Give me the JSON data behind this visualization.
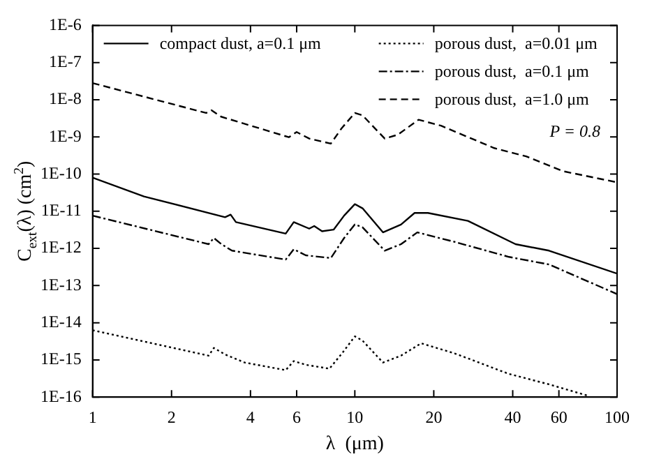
{
  "chart_data": {
    "type": "line",
    "xlabel": "λ  (μm)",
    "ylabel": "C$_{ext}$(λ) (cm$^{2}$)",
    "log": "xy",
    "grid": false,
    "legend": "top",
    "marker": "none",
    "xlim": [
      1,
      100
    ],
    "xticks": [
      1,
      2,
      4,
      6,
      10,
      20,
      40,
      60,
      100
    ],
    "ylim": [
      1e-16,
      1e-06
    ],
    "yticks": [
      {
        "value": 1e-16,
        "label": "1E-16"
      },
      {
        "value": 1e-15,
        "label": "1E-15"
      },
      {
        "value": 1e-14,
        "label": "1E-14"
      },
      {
        "value": 1e-13,
        "label": "1E-13"
      },
      {
        "value": 1e-12,
        "label": "1E-12"
      },
      {
        "value": 1e-11,
        "label": "1E-11"
      },
      {
        "value": 1e-10,
        "label": "1E-10"
      },
      {
        "value": 1e-09,
        "label": "1E-9"
      },
      {
        "value": 1e-08,
        "label": "1E-8"
      },
      {
        "value": 1e-07,
        "label": "1E-7"
      },
      {
        "value": 1e-06,
        "label": "1E-6"
      }
    ],
    "annotations": [
      "P = 0.8"
    ],
    "series": [
      {
        "name": "compact dust, a=0.1 μm",
        "color": "#000000",
        "line_style": "solid",
        "x": [
          1,
          1.57,
          3.2,
          3.36,
          3.52,
          5.45,
          5.85,
          6.7,
          7.0,
          7.5,
          8.3,
          9.1,
          10,
          10.7,
          12.8,
          15,
          16.9,
          19,
          27,
          41,
          55,
          100
        ],
        "values": [
          8e-11,
          2.5e-11,
          6.9e-12,
          8.1e-12,
          5.1e-12,
          2.5e-12,
          5.1e-12,
          3.4e-12,
          4e-12,
          2.9e-12,
          3.2e-12,
          7.6e-12,
          1.55e-11,
          1.2e-11,
          2.7e-12,
          4.4e-12,
          9e-12,
          9e-12,
          5.5e-12,
          1.3e-12,
          8.7e-13,
          2.1e-13
        ]
      },
      {
        "name": "porous dust,  a=0.01 μm",
        "color": "#000000",
        "line_style": "dotted",
        "x": [
          1,
          2.77,
          2.9,
          3.2,
          3.8,
          5.45,
          5.85,
          6.5,
          8,
          9,
          10,
          10.7,
          12.8,
          15,
          17.9,
          24,
          38.7,
          55,
          77
        ],
        "values": [
          6.3e-15,
          1.3e-15,
          2.1e-15,
          1.4e-15,
          8.5e-16,
          5.3e-16,
          9.3e-16,
          7.4e-16,
          5.8e-16,
          1.6e-15,
          4.3e-15,
          3.3e-15,
          8.5e-16,
          1.3e-15,
          2.8e-15,
          1.5e-15,
          4.2e-16,
          2.2e-16,
          1.1e-16
        ]
      },
      {
        "name": "porous dust,  a=0.1 μm",
        "color": "#000000",
        "line_style": "dashdot",
        "x": [
          1,
          2.77,
          2.9,
          3.1,
          3.4,
          5.45,
          5.85,
          6.5,
          8.1,
          9.1,
          10,
          10.7,
          13,
          15,
          17.3,
          24,
          38.7,
          55,
          100
        ],
        "values": [
          7.6e-12,
          1.3e-12,
          1.9e-12,
          1.3e-12,
          8.7e-13,
          5e-13,
          9.5e-13,
          6.5e-13,
          5.5e-13,
          1.9e-12,
          4.4e-12,
          3.7e-12,
          8.7e-13,
          1.3e-12,
          2.7e-12,
          1.5e-12,
          5.9e-13,
          3.7e-13,
          5.9e-14
        ]
      },
      {
        "name": "porous dust,  a=1.0 μm",
        "color": "#000000",
        "line_style": "dashed",
        "x": [
          1,
          2.71,
          2.84,
          3.09,
          5.6,
          6.0,
          6.7,
          8.1,
          8.9,
          10,
          10.7,
          13,
          14.6,
          17.5,
          21.3,
          34,
          45,
          62,
          100
        ],
        "values": [
          2.8e-08,
          4.4e-09,
          5.2e-09,
          3.5e-09,
          9.8e-10,
          1.35e-09,
          9e-10,
          6.6e-10,
          1.7e-09,
          4.4e-09,
          3.8e-09,
          9e-10,
          1.15e-09,
          2.9e-09,
          2e-09,
          5e-10,
          3e-10,
          1.2e-10,
          6e-11
        ]
      }
    ]
  }
}
